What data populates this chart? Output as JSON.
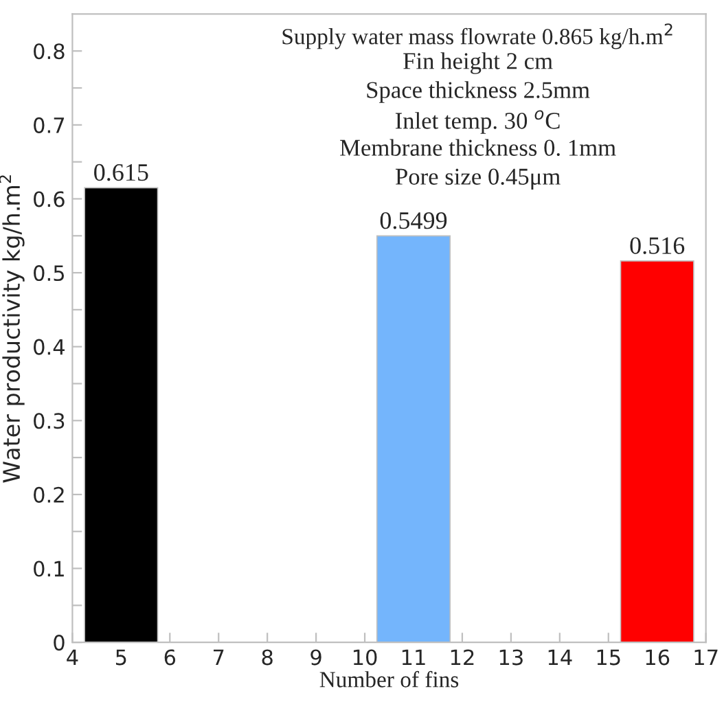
{
  "chart_data": {
    "type": "bar",
    "xlabel": "Number of fins",
    "ylabel": "Water productivity kg/h.m$^{2}$",
    "x": [
      5,
      11,
      16
    ],
    "values": [
      0.615,
      0.5499,
      0.516
    ],
    "colors": [
      "#000000",
      "#74b5fc",
      "#ff0000"
    ],
    "data_labels": true,
    "xlim": [
      4,
      17
    ],
    "xticks": [
      4,
      5,
      6,
      7,
      8,
      9,
      10,
      11,
      12,
      13,
      14,
      15,
      16,
      17
    ],
    "ylim": [
      0,
      0.85
    ],
    "yticks": [
      0,
      {
        "value": 0.05,
        "label": null
      },
      0.1,
      {
        "value": 0.15,
        "label": null
      },
      0.2,
      {
        "value": 0.25,
        "label": null
      },
      0.3,
      {
        "value": 0.35,
        "label": null
      },
      0.4,
      {
        "value": 0.45,
        "label": null
      },
      0.5,
      {
        "value": 0.55,
        "label": null
      },
      0.6,
      {
        "value": 0.65,
        "label": null
      },
      0.7,
      {
        "value": 0.75,
        "label": null
      },
      0.8
    ],
    "grid": false,
    "annotations": [
      "Supply water mass flowrate 0.865 kg/h.m$^{2}$",
      "Fin height 2 cm",
      "Space thickness 2.5mm",
      "Inlet temp. 30 $^{o}$C",
      "Membrane thickness 0. 1mm",
      "Pore size 0.45μm"
    ]
  }
}
